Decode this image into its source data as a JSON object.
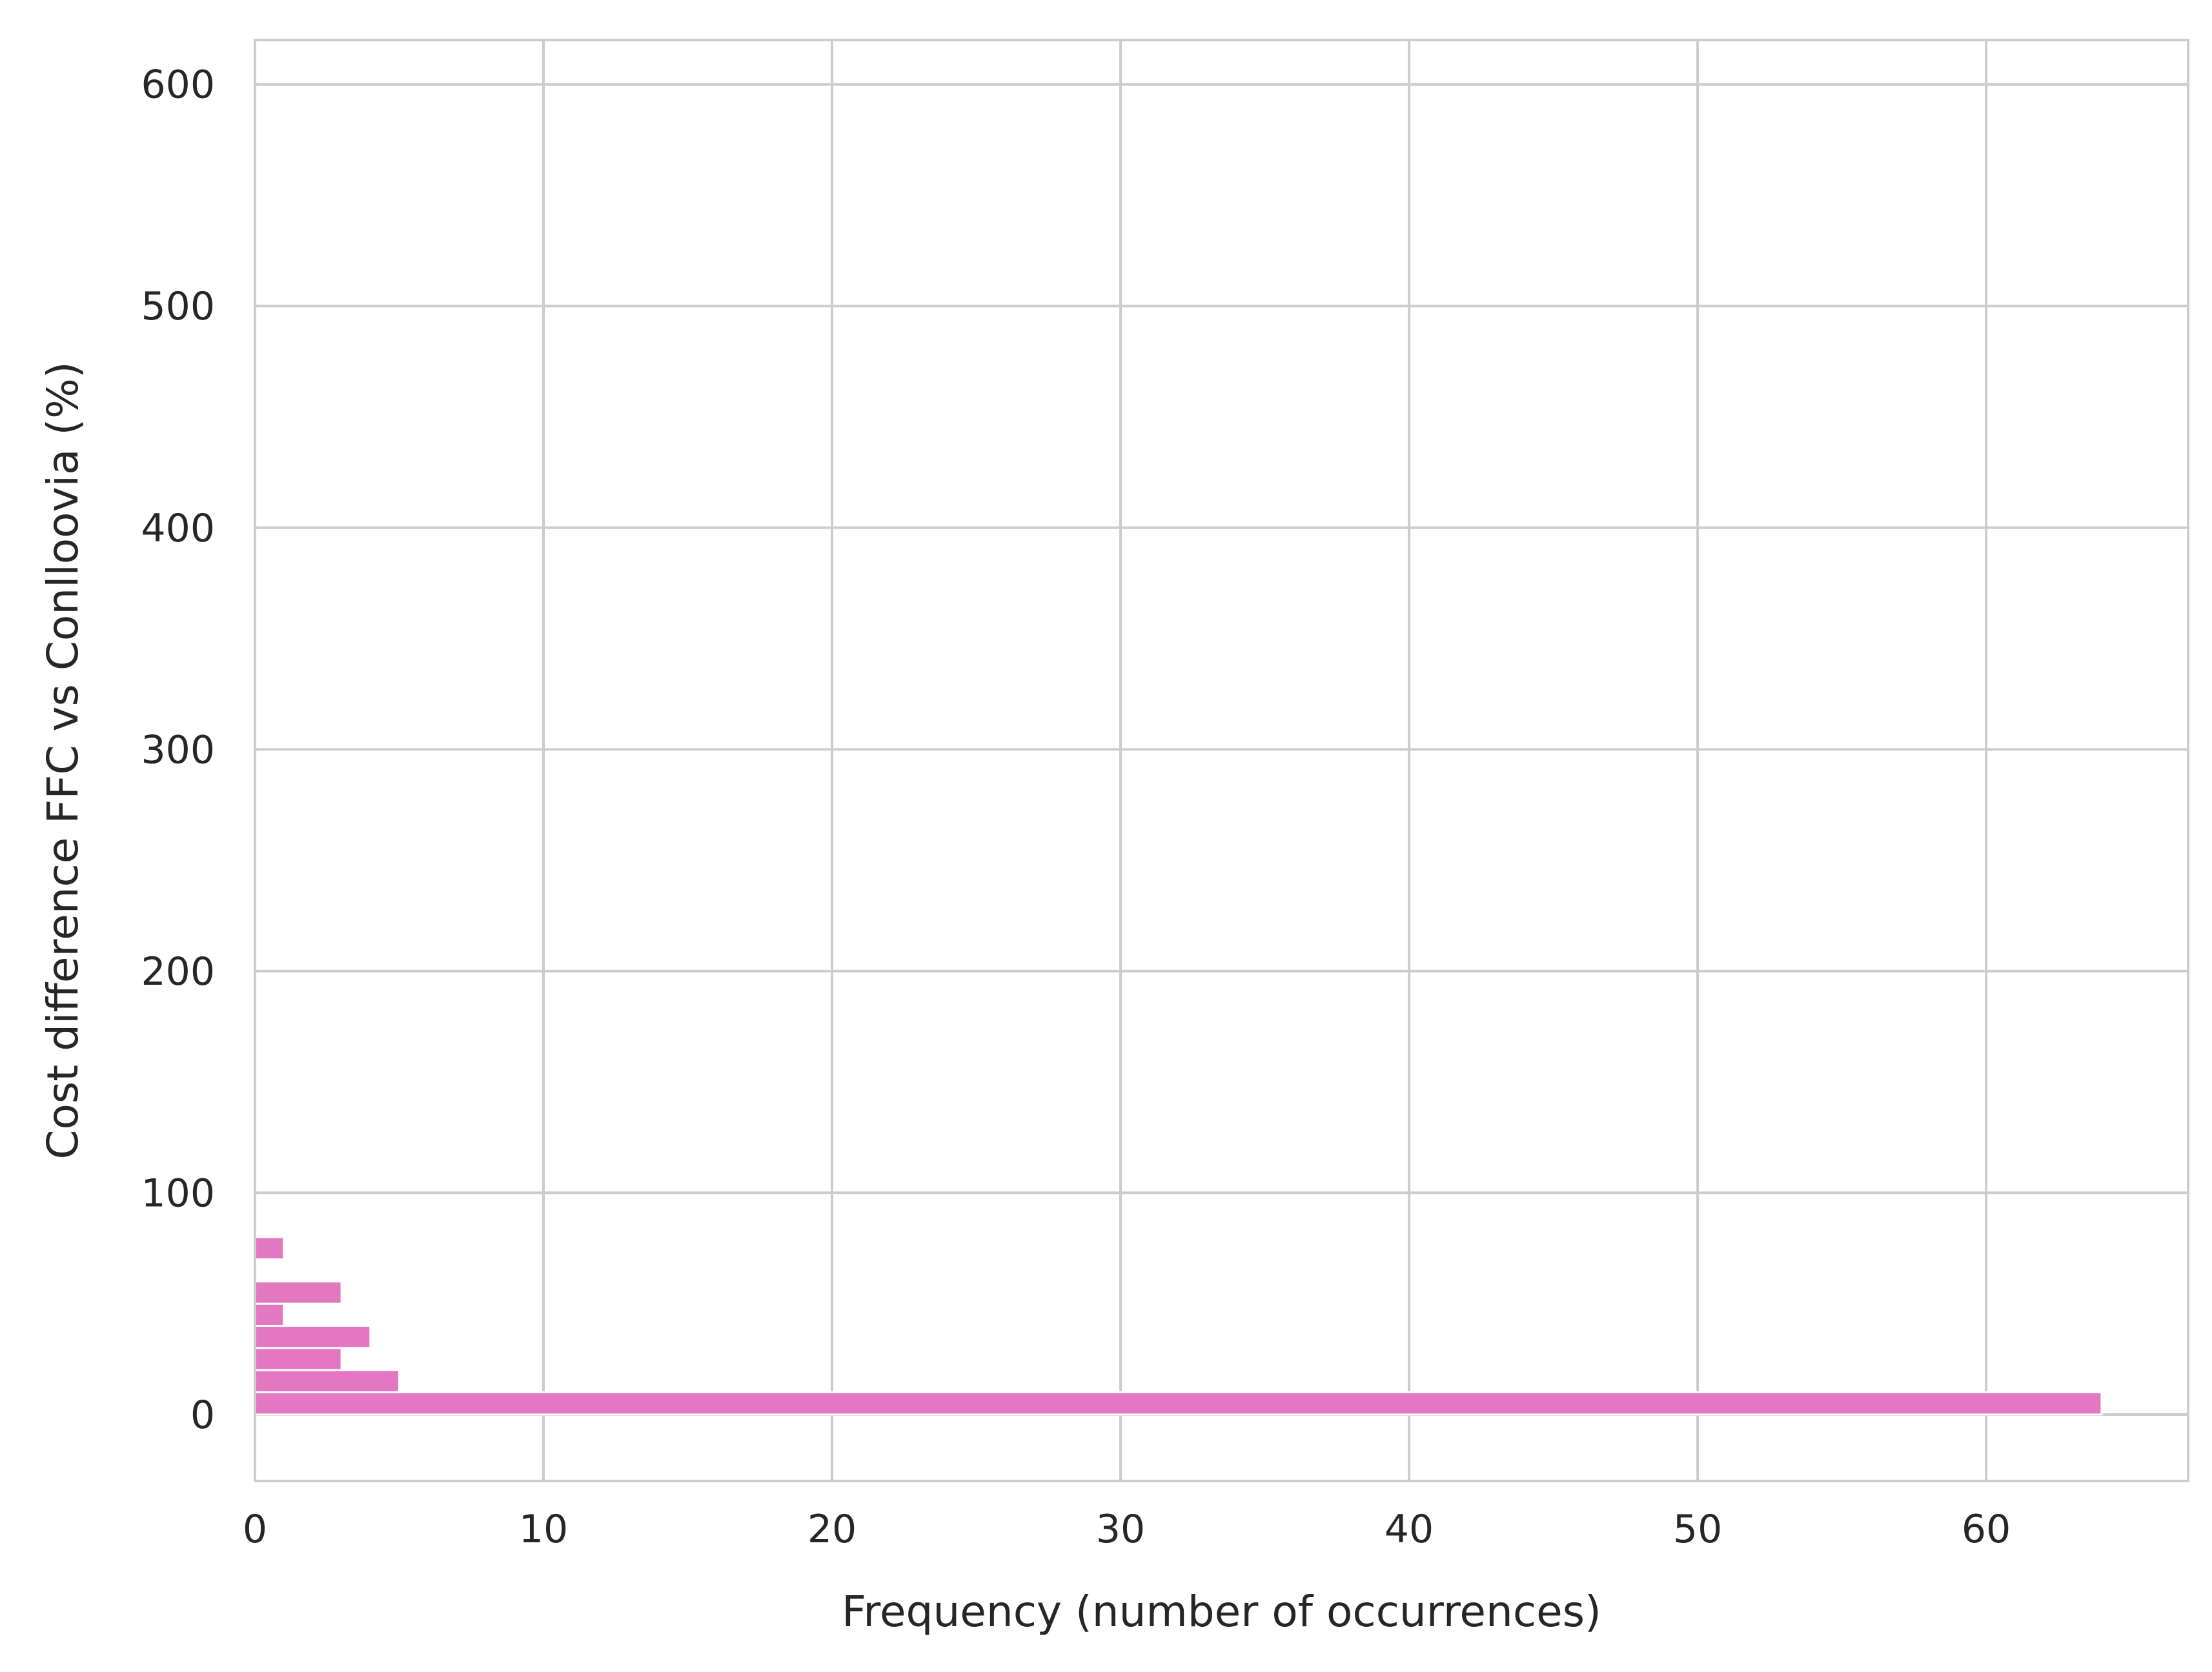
{
  "chart_data": {
    "type": "bar",
    "orientation": "horizontal-histogram",
    "title": "",
    "xlabel": "Frequency (number of occurrences)",
    "ylabel": "Cost difference FFC vs Conlloovia (%)",
    "xlim": [
      0,
      67
    ],
    "ylim": [
      -30,
      620
    ],
    "xticks": [
      0,
      10,
      20,
      30,
      40,
      50,
      60
    ],
    "yticks": [
      0,
      100,
      200,
      300,
      400,
      500,
      600
    ],
    "grid": true,
    "bar_color": "#e377c2",
    "bins": [
      {
        "y0": 0,
        "y1": 10,
        "count": 64
      },
      {
        "y0": 10,
        "y1": 20,
        "count": 5
      },
      {
        "y0": 20,
        "y1": 30,
        "count": 3
      },
      {
        "y0": 30,
        "y1": 40,
        "count": 4
      },
      {
        "y0": 40,
        "y1": 50,
        "count": 1
      },
      {
        "y0": 50,
        "y1": 60,
        "count": 3
      },
      {
        "y0": 70,
        "y1": 80,
        "count": 1
      }
    ]
  }
}
